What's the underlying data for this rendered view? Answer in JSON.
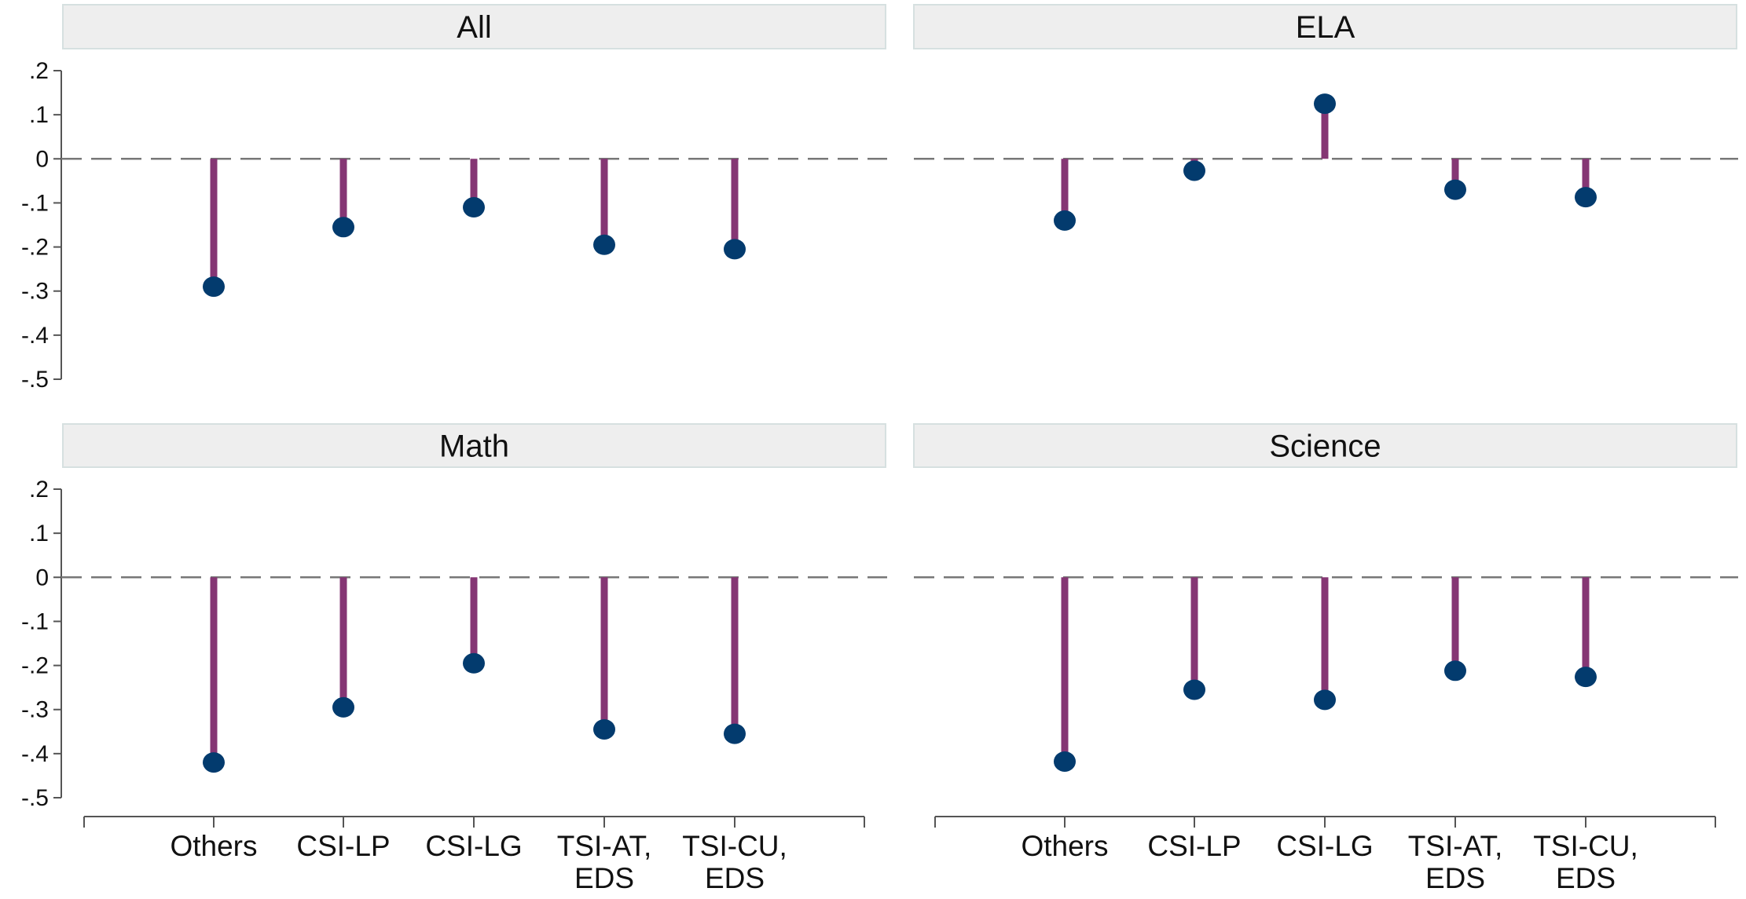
{
  "colors": {
    "stem": "#853674",
    "marker": "#033b6e",
    "strip_background": "#eeeeee",
    "zero_line": "#777777"
  },
  "chart_data": {
    "type": "lollipop",
    "categories": [
      [
        "Others"
      ],
      [
        "CSI-LP"
      ],
      [
        "CSI-LG"
      ],
      [
        "TSI-AT,",
        "EDS"
      ],
      [
        "TSI-CU,",
        "EDS"
      ]
    ],
    "y_ticks": [
      ".2",
      ".1",
      "0",
      "-.1",
      "-.2",
      "-.3",
      "-.4",
      "-.5"
    ],
    "y_tick_values": [
      0.2,
      0.1,
      0,
      -0.1,
      -0.2,
      -0.3,
      -0.4,
      -0.5
    ],
    "ylim": [
      -0.5,
      0.2
    ],
    "reference_line": 0,
    "grid": false,
    "panels": [
      {
        "title": "All",
        "values": [
          -0.29,
          -0.155,
          -0.11,
          -0.195,
          -0.205
        ]
      },
      {
        "title": "ELA",
        "values": [
          -0.14,
          -0.027,
          0.125,
          -0.07,
          -0.087
        ]
      },
      {
        "title": "Math",
        "values": [
          -0.42,
          -0.295,
          -0.195,
          -0.345,
          -0.355
        ]
      },
      {
        "title": "Science",
        "values": [
          -0.418,
          -0.255,
          -0.278,
          -0.212,
          -0.226
        ]
      }
    ]
  }
}
